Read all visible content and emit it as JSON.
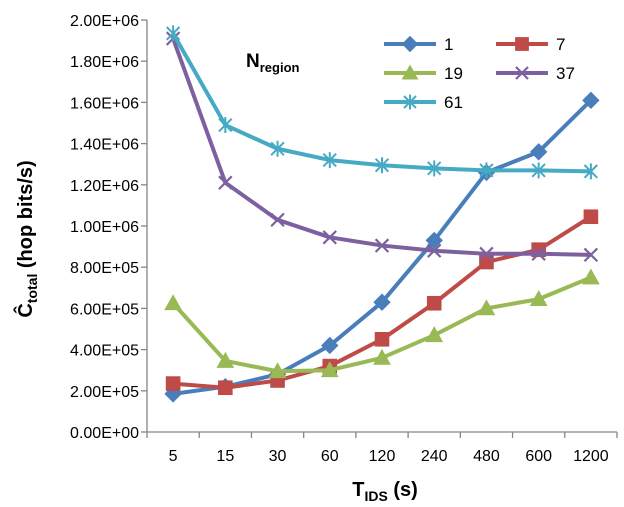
{
  "chart_data": {
    "type": "line",
    "categories": [
      "5",
      "15",
      "30",
      "60",
      "120",
      "240",
      "480",
      "600",
      "1200"
    ],
    "xlabel": {
      "main": "T",
      "sub": "IDS",
      "suffix": " (s)"
    },
    "ylabel": {
      "main": "Ĉ",
      "sub": "total",
      "suffix": " (hop bits/s)"
    },
    "ylim": [
      0,
      2000000
    ],
    "yticks": [
      "0.00E+00",
      "2.00E+05",
      "4.00E+05",
      "6.00E+05",
      "8.00E+05",
      "1.00E+06",
      "1.20E+06",
      "1.40E+06",
      "1.60E+06",
      "1.80E+06",
      "2.00E+06"
    ],
    "legend_title": {
      "main": "N",
      "sub": "region"
    },
    "legend_position": "top-right",
    "grid": false,
    "series": [
      {
        "name": "1",
        "color": "#4A7EBB",
        "marker": "diamond",
        "values": [
          185000,
          220000,
          280000,
          420000,
          630000,
          930000,
          1260000,
          1360000,
          1610000
        ]
      },
      {
        "name": "7",
        "color": "#BE4B48",
        "marker": "square",
        "values": [
          235000,
          215000,
          250000,
          320000,
          450000,
          625000,
          825000,
          885000,
          1045000
        ]
      },
      {
        "name": "19",
        "color": "#98B954",
        "marker": "triangle",
        "values": [
          625000,
          345000,
          295000,
          300000,
          360000,
          470000,
          600000,
          645000,
          750000
        ]
      },
      {
        "name": "37",
        "color": "#7D60A0",
        "marker": "x",
        "values": [
          1910000,
          1210000,
          1030000,
          945000,
          905000,
          880000,
          865000,
          865000,
          860000
        ]
      },
      {
        "name": "61",
        "color": "#46AAC5",
        "marker": "star",
        "values": [
          1935000,
          1490000,
          1375000,
          1320000,
          1295000,
          1280000,
          1270000,
          1270000,
          1265000
        ]
      }
    ]
  }
}
